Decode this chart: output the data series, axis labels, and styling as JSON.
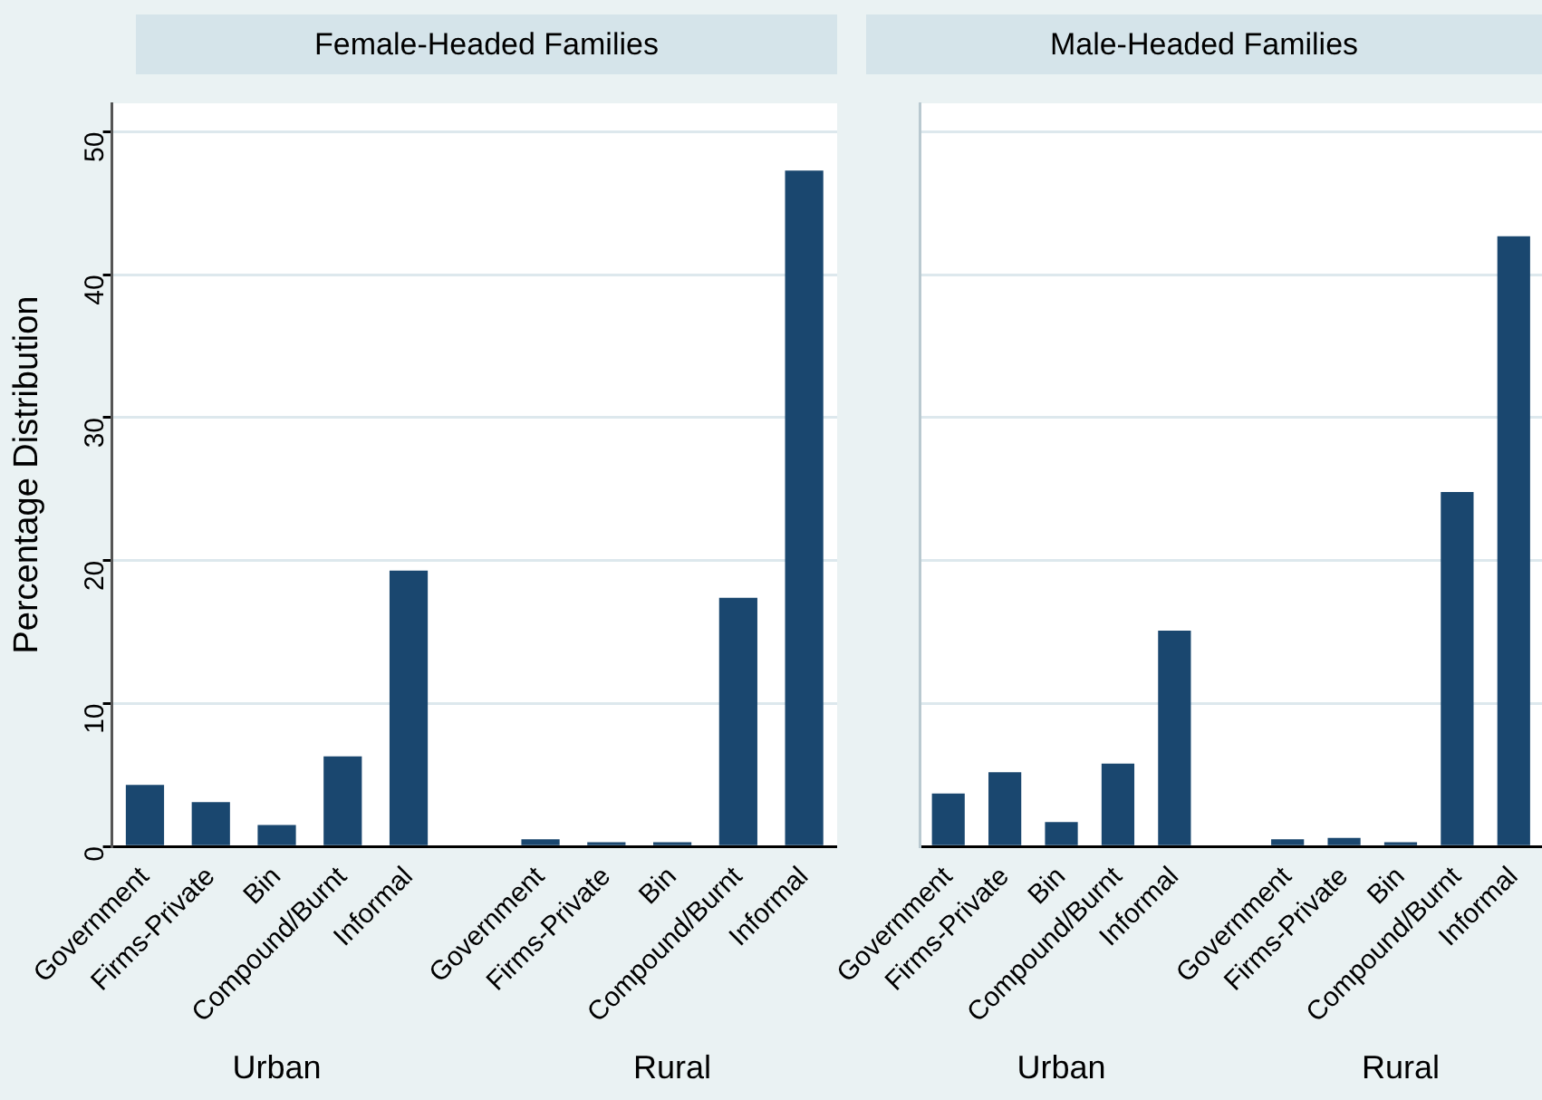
{
  "chart_data": [
    {
      "type": "bar",
      "title": "Female-Headed Families",
      "ylabel": "Percentage Distribution",
      "categories": [
        "Government",
        "Firms-Private",
        "Bin",
        "Compound/Burnt",
        "Informal",
        null,
        "Government",
        "Firms-Private",
        "Bin",
        "Compound/Burnt",
        "Informal"
      ],
      "series": [
        {
          "color": "#1a476f",
          "values": [
            4.3,
            3.1,
            1.5,
            6.3,
            19.3,
            null,
            0.5,
            0.3,
            0.3,
            17.4,
            47.3
          ]
        }
      ],
      "ylim": [
        0,
        52
      ],
      "yticks": [
        0,
        10,
        20,
        30,
        40,
        50
      ],
      "grid": "y",
      "legend": false,
      "annotations": [
        "Urban",
        "Rural"
      ]
    },
    {
      "type": "bar",
      "title": "Male-Headed Families",
      "categories": [
        "Government",
        "Firms-Private",
        "Bin",
        "Compound/Burnt",
        "Informal",
        null,
        "Government",
        "Firms-Private",
        "Bin",
        "Compound/Burnt",
        "Informal"
      ],
      "series": [
        {
          "color": "#1a476f",
          "values": [
            3.7,
            5.2,
            1.7,
            5.8,
            15.1,
            null,
            0.5,
            0.6,
            0.3,
            24.8,
            42.7
          ]
        }
      ],
      "ylim": [
        0,
        52
      ],
      "yticks": [
        0,
        10,
        20,
        30,
        40,
        50
      ],
      "grid": "y",
      "legend": false,
      "tick_labels": "x",
      "annotations": [
        "Urban",
        "Rural"
      ]
    }
  ]
}
